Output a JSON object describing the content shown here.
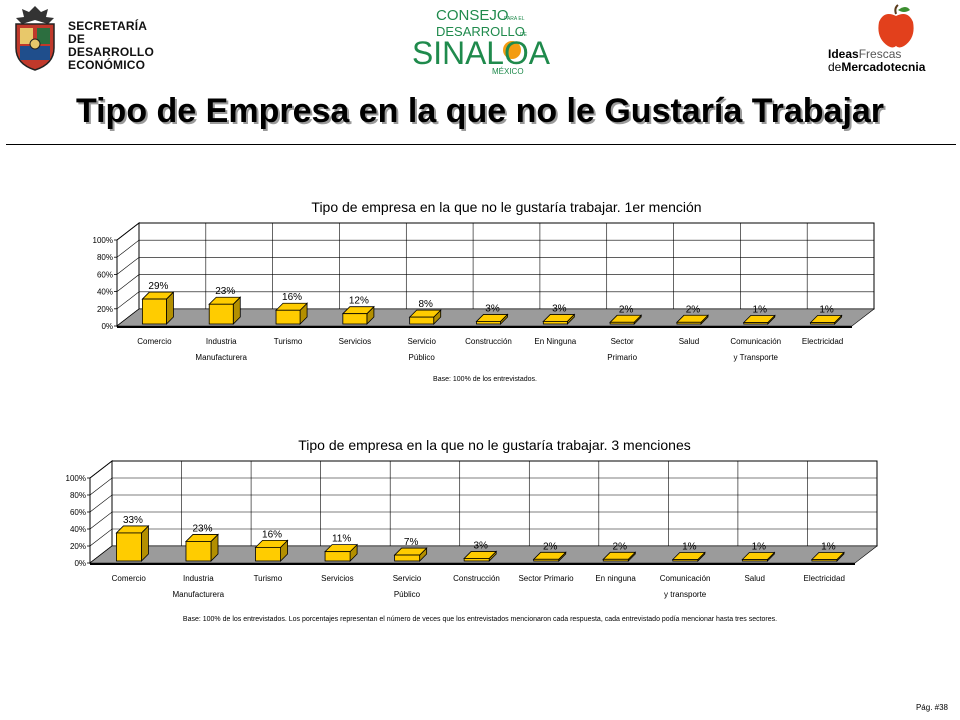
{
  "logos": {
    "sde": {
      "lines": [
        "SECRETARÍA",
        "DE DESARROLLO",
        "ECONÓMICO"
      ]
    },
    "cds": {
      "line1": "CONSEJO",
      "line1_small": "PARA EL",
      "line2": "DESARROLLO",
      "line2_small": "DE",
      "line3": "SINALOA",
      "line4": "MÉXICO"
    },
    "ifm": {
      "ideas": "Ideas",
      "frescas": "Frescas",
      "de": "de",
      "mercadotecnia": "Mercadotecnia"
    }
  },
  "page": {
    "title": "Tipo de Empresa en la que no le Gustaría Trabajar",
    "page_number": "Pág. #38"
  },
  "colors": {
    "bar": "#ffcc00",
    "bar_dark": "#b38f00",
    "floor": "#9b9b9b"
  },
  "chart_data": [
    {
      "type": "bar",
      "title": "Tipo de empresa en la que no le gustaría trabajar. 1er mención",
      "categories": [
        [
          "Comercio",
          ""
        ],
        [
          "Industria",
          "Manufacturera"
        ],
        [
          "Turismo",
          ""
        ],
        [
          "Servicios",
          ""
        ],
        [
          "Servicio",
          "Público"
        ],
        [
          "Construcción",
          ""
        ],
        [
          "En Ninguna",
          ""
        ],
        [
          "Sector",
          "Primario"
        ],
        [
          "Salud",
          ""
        ],
        [
          "Comunicación",
          "y Transporte"
        ],
        [
          "Electricidad",
          ""
        ]
      ],
      "values": [
        29,
        23,
        16,
        12,
        8,
        3,
        3,
        2,
        2,
        1,
        1
      ],
      "value_labels": [
        "29%",
        "23%",
        "16%",
        "12%",
        "8%",
        "3%",
        "3%",
        "2%",
        "2%",
        "1%",
        "1%"
      ],
      "y_ticks": [
        "0%",
        "20%",
        "40%",
        "60%",
        "80%",
        "100%"
      ],
      "ylim": [
        0,
        100
      ],
      "grid": true,
      "note": "Base: 100% de los entrevistados."
    },
    {
      "type": "bar",
      "title": "Tipo de empresa en la que no le gustaría trabajar. 3 menciones",
      "categories": [
        [
          "Comercio",
          ""
        ],
        [
          "Industria",
          "Manufacturera"
        ],
        [
          "Turismo",
          ""
        ],
        [
          "Servicios",
          ""
        ],
        [
          "Servicio",
          "Público"
        ],
        [
          "Construcción",
          ""
        ],
        [
          "Sector Primario",
          ""
        ],
        [
          "En ninguna",
          ""
        ],
        [
          "Comunicación",
          "y transporte"
        ],
        [
          "Salud",
          ""
        ],
        [
          "Electricidad",
          ""
        ]
      ],
      "values": [
        33,
        23,
        16,
        11,
        7,
        3,
        2,
        2,
        1,
        1,
        1
      ],
      "value_labels": [
        "33%",
        "23%",
        "16%",
        "11%",
        "7%",
        "3%",
        "2%",
        "2%",
        "1%",
        "1%",
        "1%"
      ],
      "y_ticks": [
        "0%",
        "20%",
        "40%",
        "60%",
        "80%",
        "100%"
      ],
      "ylim": [
        0,
        100
      ],
      "grid": true,
      "note": "Base: 100% de los entrevistados. Los porcentajes representan el número de veces que los entrevistados mencionaron cada respuesta, cada entrevistado podía mencionar hasta tres sectores."
    }
  ]
}
